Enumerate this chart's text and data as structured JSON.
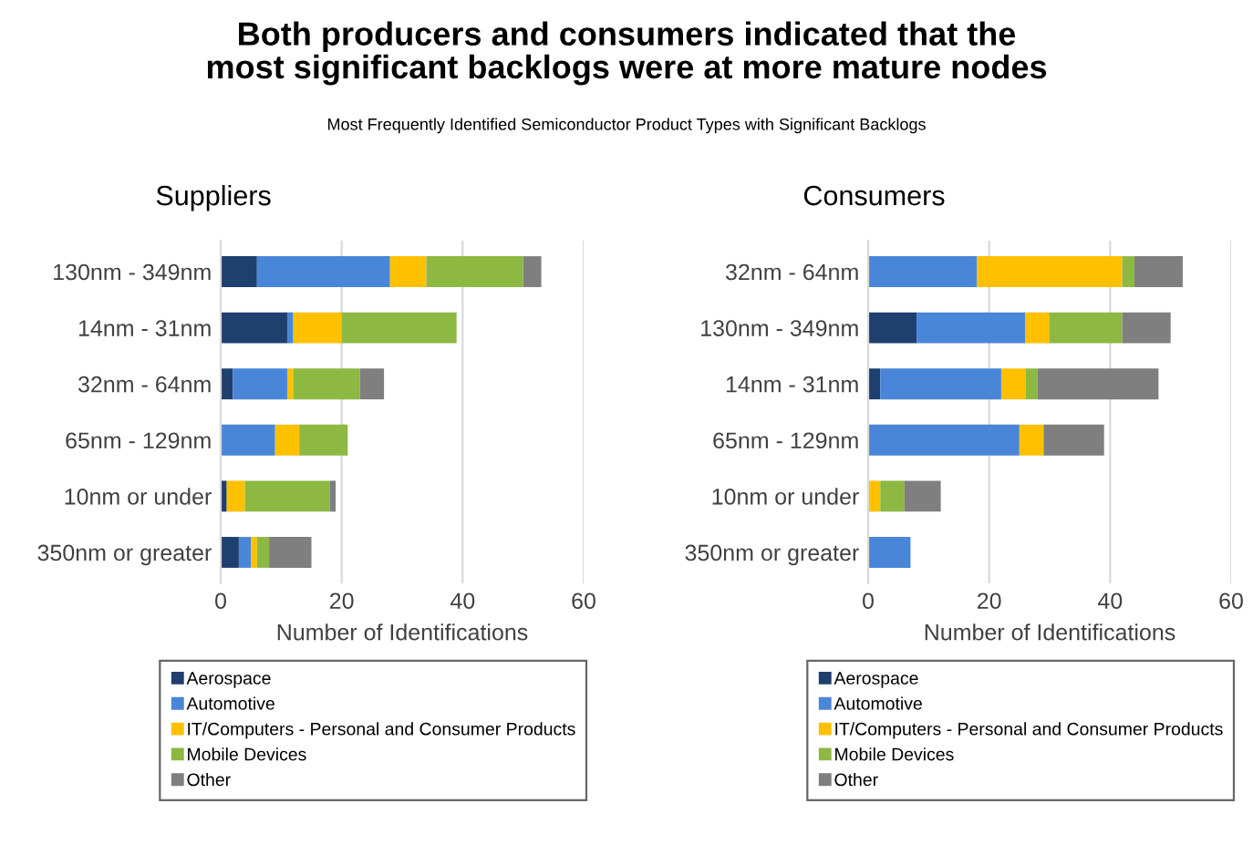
{
  "chart_data": [
    {
      "type": "bar",
      "orientation": "horizontal",
      "stacked": true,
      "title": "Suppliers",
      "xlabel": "Number of Identifications",
      "annotations": [
        "Both producers and consumers indicated that the\nmost significant backlogs were at more mature nodes",
        "Most Frequently Identified Semiconductor Product Types with Significant Backlogs"
      ],
      "categories": [
        "130nm - 349nm",
        "14nm - 31nm",
        "32nm - 64nm",
        "65nm - 129nm",
        "10nm or under",
        "350nm or greater"
      ],
      "series": [
        {
          "name": "Aerospace",
          "color": "#1f3f6e",
          "values": [
            6,
            11,
            2,
            0,
            1,
            3
          ]
        },
        {
          "name": "Automotive",
          "color": "#4a86d8",
          "values": [
            22,
            1,
            9,
            9,
            0,
            2
          ]
        },
        {
          "name": "IT/Computers - Personal and Consumer Products",
          "color": "#ffc000",
          "values": [
            6,
            8,
            1,
            4,
            3,
            1
          ]
        },
        {
          "name": "Mobile Devices",
          "color": "#8db842",
          "values": [
            16,
            19,
            11,
            8,
            14,
            2
          ]
        },
        {
          "name": "Other",
          "color": "#7f7f7f",
          "values": [
            3,
            0,
            4,
            0,
            1,
            7
          ]
        }
      ],
      "xlim": [
        0,
        60
      ],
      "xticks": [
        0,
        20,
        40,
        60
      ],
      "grid": "x",
      "legend": "bottom"
    },
    {
      "type": "bar",
      "orientation": "horizontal",
      "stacked": true,
      "title": "Consumers",
      "xlabel": "Number of Identifications",
      "categories": [
        "32nm - 64nm",
        "130nm - 349nm",
        "14nm - 31nm",
        "65nm - 129nm",
        "10nm or under",
        "350nm or greater"
      ],
      "series": [
        {
          "name": "Aerospace",
          "color": "#1f3f6e",
          "values": [
            0,
            8,
            2,
            0,
            0,
            0
          ]
        },
        {
          "name": "Automotive",
          "color": "#4a86d8",
          "values": [
            18,
            18,
            20,
            25,
            0,
            7
          ]
        },
        {
          "name": "IT/Computers - Personal and Consumer Products",
          "color": "#ffc000",
          "values": [
            24,
            4,
            4,
            4,
            2,
            0
          ]
        },
        {
          "name": "Mobile Devices",
          "color": "#8db842",
          "values": [
            2,
            12,
            2,
            0,
            4,
            0
          ]
        },
        {
          "name": "Other",
          "color": "#7f7f7f",
          "values": [
            8,
            8,
            20,
            10,
            6,
            0
          ]
        }
      ],
      "xlim": [
        0,
        60
      ],
      "xticks": [
        0,
        20,
        40,
        60
      ],
      "grid": "x",
      "legend": "bottom"
    }
  ]
}
